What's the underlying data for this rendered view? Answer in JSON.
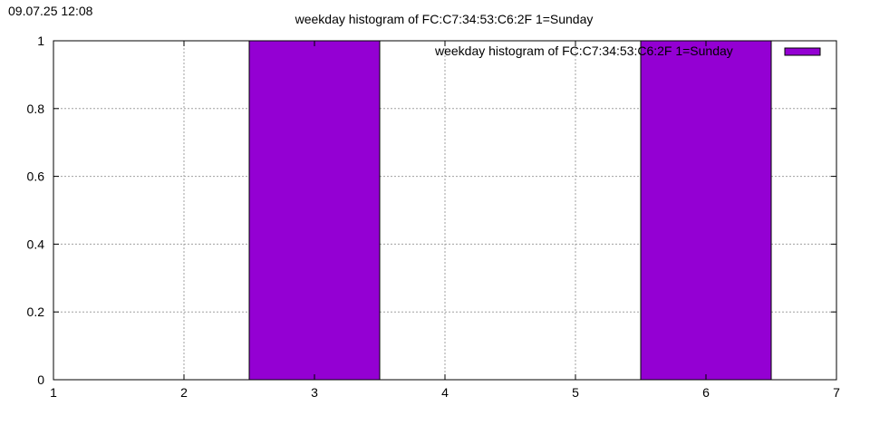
{
  "timestamp": "09.07.25 12:08",
  "chart_data": {
    "type": "bar",
    "title": "weekday histogram of FC:C7:34:53:C6:2F 1=Sunday",
    "xlabel": "",
    "ylabel": "",
    "xlim": [
      1,
      7
    ],
    "ylim": [
      0,
      1
    ],
    "xticks": [
      "1",
      "2",
      "3",
      "4",
      "5",
      "6",
      "7"
    ],
    "yticks": [
      "0",
      "0.2",
      "0.4",
      "0.6",
      "0.8",
      "1"
    ],
    "grid": true,
    "legend_position": "top-right",
    "bar_width": 1,
    "bar_color": "#9400d3",
    "series": [
      {
        "name": "weekday histogram of FC:C7:34:53:C6:2F 1=Sunday",
        "x": [
          3,
          6
        ],
        "values": [
          1,
          1
        ]
      }
    ]
  }
}
